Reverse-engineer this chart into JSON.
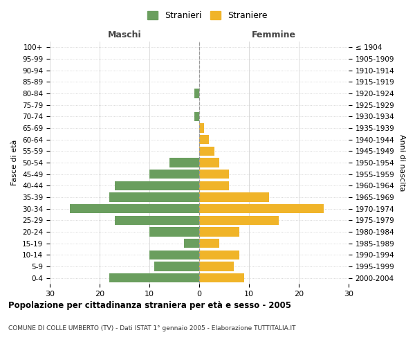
{
  "age_groups": [
    "0-4",
    "5-9",
    "10-14",
    "15-19",
    "20-24",
    "25-29",
    "30-34",
    "35-39",
    "40-44",
    "45-49",
    "50-54",
    "55-59",
    "60-64",
    "65-69",
    "70-74",
    "75-79",
    "80-84",
    "85-89",
    "90-94",
    "95-99",
    "100+"
  ],
  "birth_years": [
    "2000-2004",
    "1995-1999",
    "1990-1994",
    "1985-1989",
    "1980-1984",
    "1975-1979",
    "1970-1974",
    "1965-1969",
    "1960-1964",
    "1955-1959",
    "1950-1954",
    "1945-1949",
    "1940-1944",
    "1935-1939",
    "1930-1934",
    "1925-1929",
    "1920-1924",
    "1915-1919",
    "1910-1914",
    "1905-1909",
    "≤ 1904"
  ],
  "maschi": [
    18,
    9,
    10,
    3,
    10,
    17,
    26,
    18,
    17,
    10,
    6,
    0,
    0,
    0,
    1,
    0,
    1,
    0,
    0,
    0,
    0
  ],
  "femmine": [
    9,
    7,
    8,
    4,
    8,
    16,
    25,
    14,
    6,
    6,
    4,
    3,
    2,
    1,
    0,
    0,
    0,
    0,
    0,
    0,
    0
  ],
  "color_maschi": "#6a9e5e",
  "color_femmine": "#f0b429",
  "title": "Popolazione per cittadinanza straniera per età e sesso - 2005",
  "subtitle": "COMUNE DI COLLE UMBERTO (TV) - Dati ISTAT 1° gennaio 2005 - Elaborazione TUTTITALIA.IT",
  "ylabel_left": "Fasce di età",
  "ylabel_right": "Anni di nascita",
  "xlabel_left": "Maschi",
  "xlabel_right": "Femmine",
  "legend_maschi": "Stranieri",
  "legend_femmine": "Straniere",
  "xlim": 30,
  "background_color": "#ffffff",
  "grid_color": "#cccccc"
}
